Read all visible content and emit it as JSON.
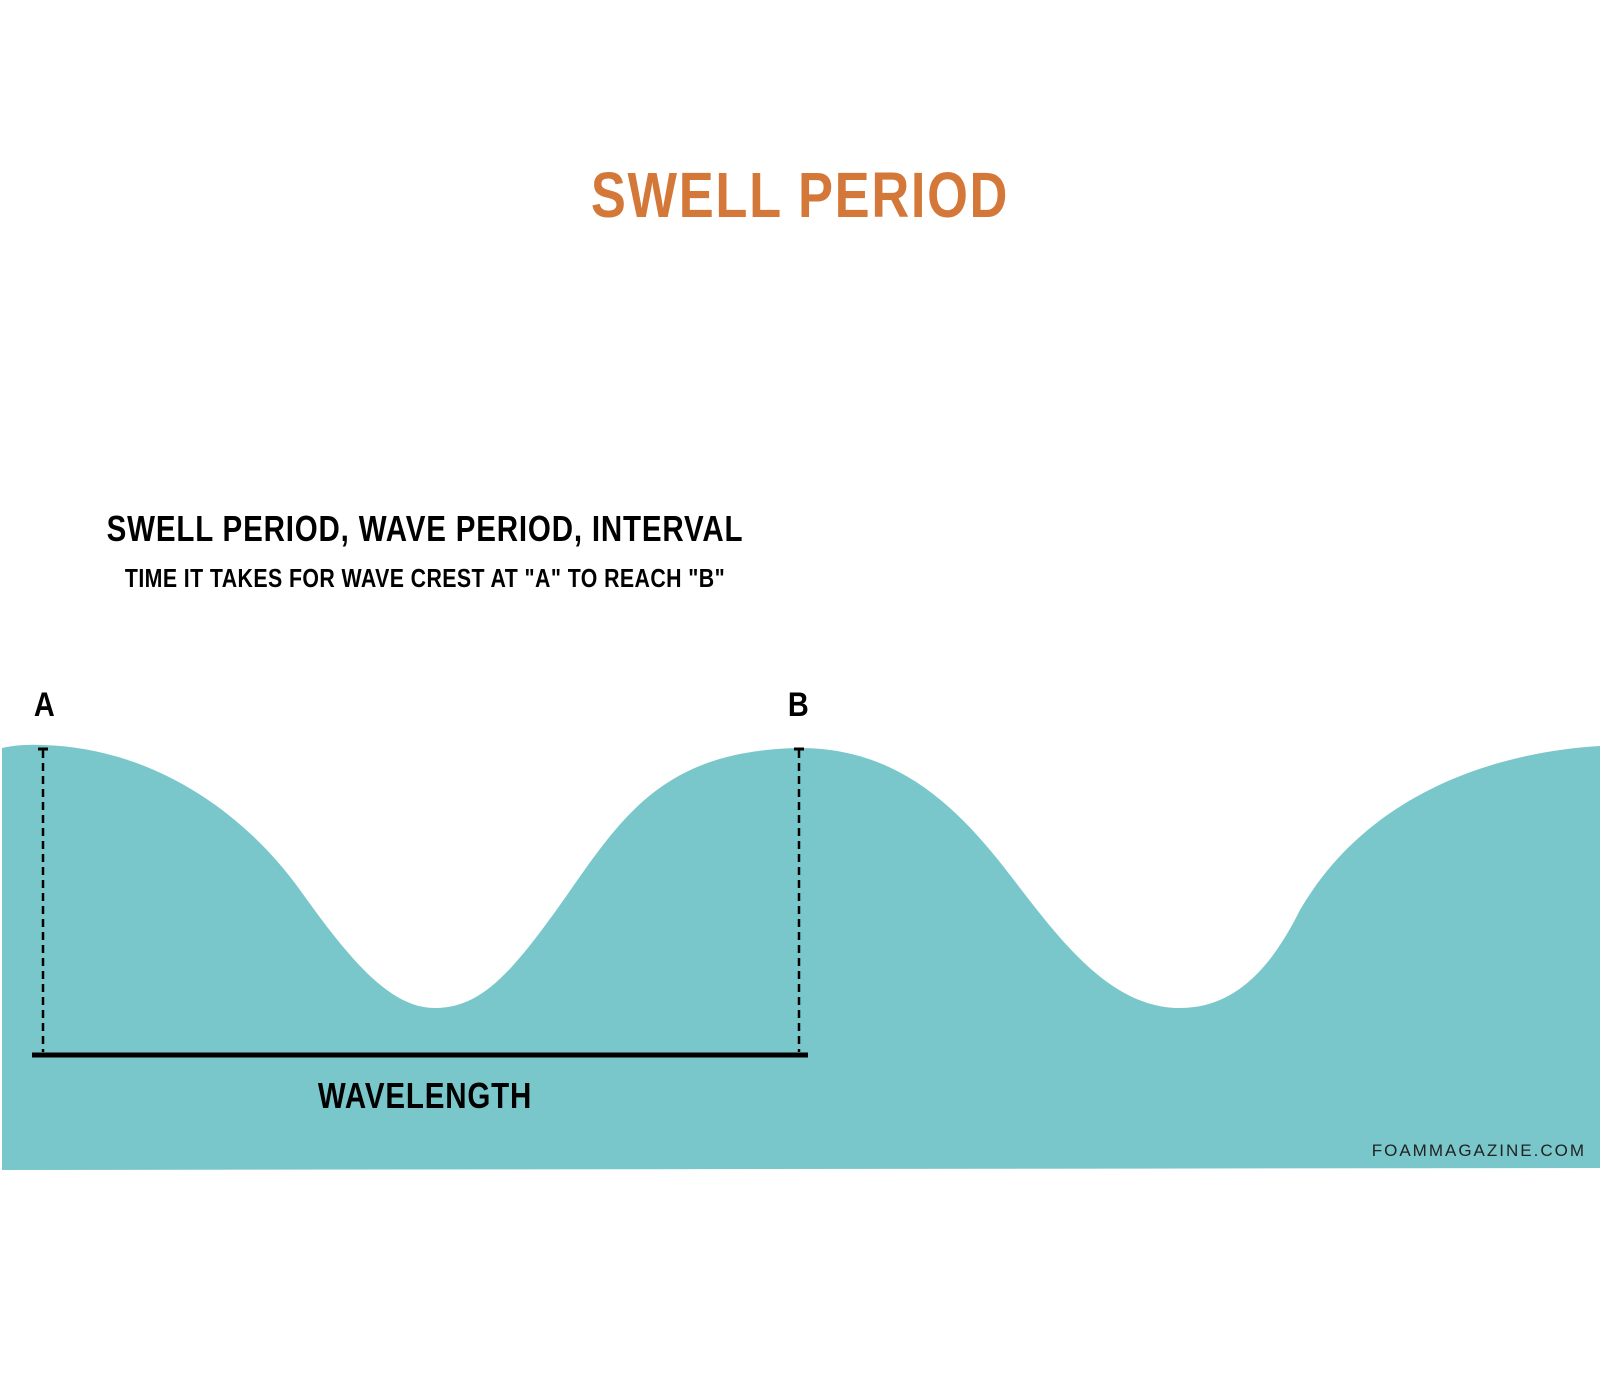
{
  "title": "SWELL PERIOD",
  "heading": "SWELL PERIOD, WAVE PERIOD, INTERVAL",
  "subheading": "TIME IT TAKES FOR WAVE CREST AT \"A\" TO REACH \"B\"",
  "points": {
    "a": "A",
    "b": "B"
  },
  "measure_label": "WAVELENGTH",
  "watermark": "FOAMMAGAZINE.COM",
  "colors": {
    "title": "#d4783a",
    "wave": "#79c7ca",
    "ink": "#000000"
  }
}
